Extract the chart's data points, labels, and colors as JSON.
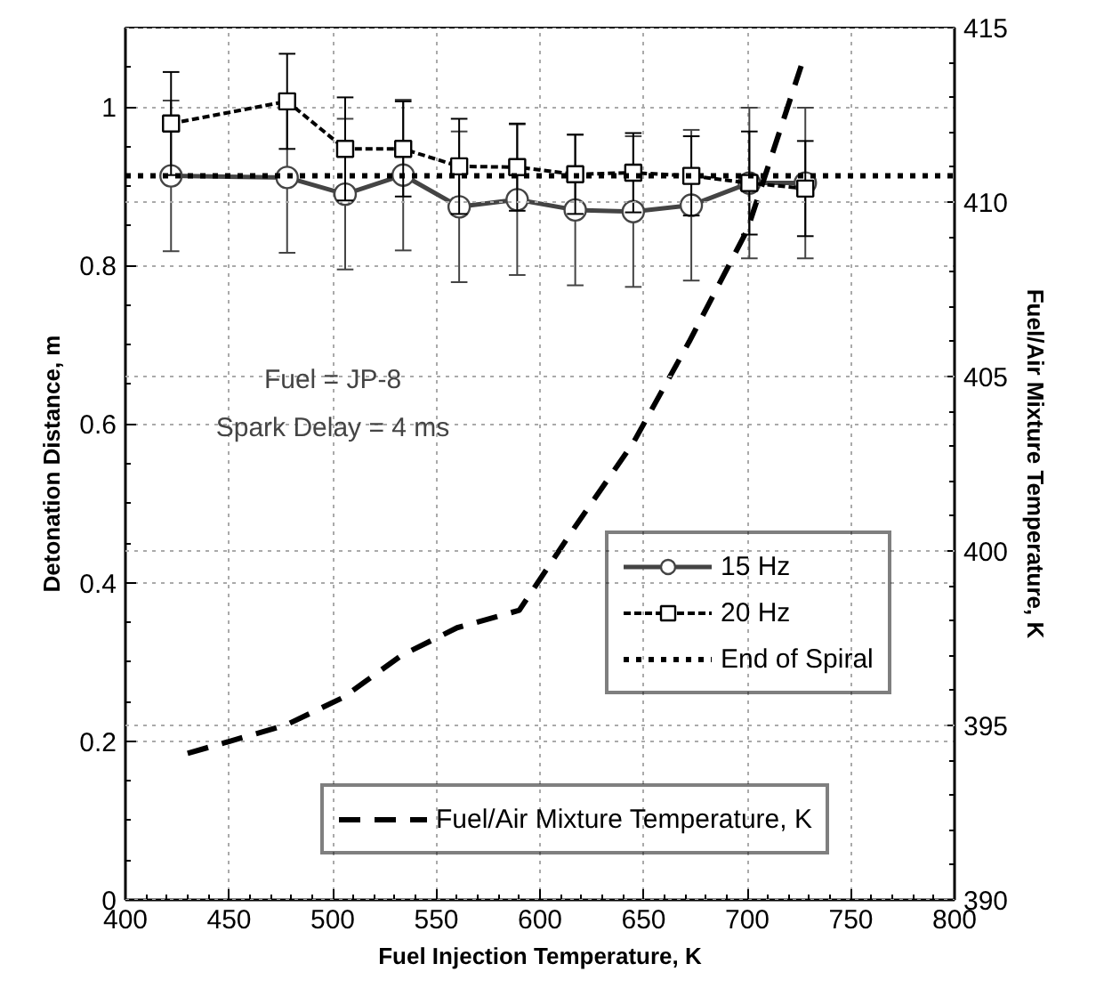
{
  "chart_data": {
    "type": "line",
    "xlabel": "Fuel Injection Temperature, K",
    "ylabel": "Detonation Distance, m",
    "y2label": "Fuel/Air Mixture Temperature, K",
    "xlim": [
      400,
      800
    ],
    "xticks": [
      400,
      450,
      500,
      550,
      600,
      650,
      700,
      750,
      800
    ],
    "ylim": [
      0,
      1.1
    ],
    "yticks": [
      0,
      0.2,
      0.4,
      0.6,
      0.8,
      1
    ],
    "y2lim": [
      390,
      415
    ],
    "y2ticks": [
      390,
      395,
      400,
      405,
      410,
      415
    ],
    "grid": true,
    "legend": "center right",
    "annotations": [
      "Fuel = JP-8\nSpark Delay = 4 ms"
    ],
    "ref_lines": [
      {
        "axis": "y",
        "value": 0.913,
        "label": "End of Spiral",
        "color": "#000000",
        "line_style": "dotted"
      }
    ],
    "series": [
      {
        "name": "15 Hz",
        "color": "#444444",
        "marker": "circle",
        "line_style": "solid",
        "x": [
          422,
          478,
          506,
          534,
          561,
          589,
          617,
          645,
          673,
          701,
          728
        ],
        "values": [
          0.913,
          0.911,
          0.89,
          0.914,
          0.874,
          0.883,
          0.87,
          0.868,
          0.876,
          0.904,
          0.904
        ],
        "errors": [
          0.095,
          0.095,
          0.095,
          0.095,
          0.095,
          0.095,
          0.095,
          0.095,
          0.095,
          0.095,
          0.095
        ]
      },
      {
        "name": "20 Hz",
        "color": "#000000",
        "marker": "square",
        "line_style": "dashed",
        "x": [
          422,
          478,
          506,
          534,
          561,
          589,
          617,
          645,
          673,
          701,
          728
        ],
        "values": [
          0.979,
          1.007,
          0.947,
          0.947,
          0.925,
          0.924,
          0.915,
          0.917,
          0.913,
          0.904,
          0.897
        ],
        "errors": [
          0.065,
          0.06,
          0.065,
          0.06,
          0.06,
          0.055,
          0.05,
          0.05,
          0.05,
          0.065,
          0.06
        ]
      },
      {
        "name": "Fuel/Air Mixture Temperature, K",
        "color": "#000000",
        "marker": "none",
        "line_style": "dashed",
        "axis": "y2",
        "x": [
          430,
          477,
          505,
          533,
          560,
          590,
          617,
          645,
          672,
          700,
          726
        ],
        "values": [
          394.2,
          395.0,
          395.8,
          397.0,
          397.8,
          398.3,
          400.7,
          403.1,
          406.0,
          409.2,
          413.9
        ]
      }
    ]
  }
}
